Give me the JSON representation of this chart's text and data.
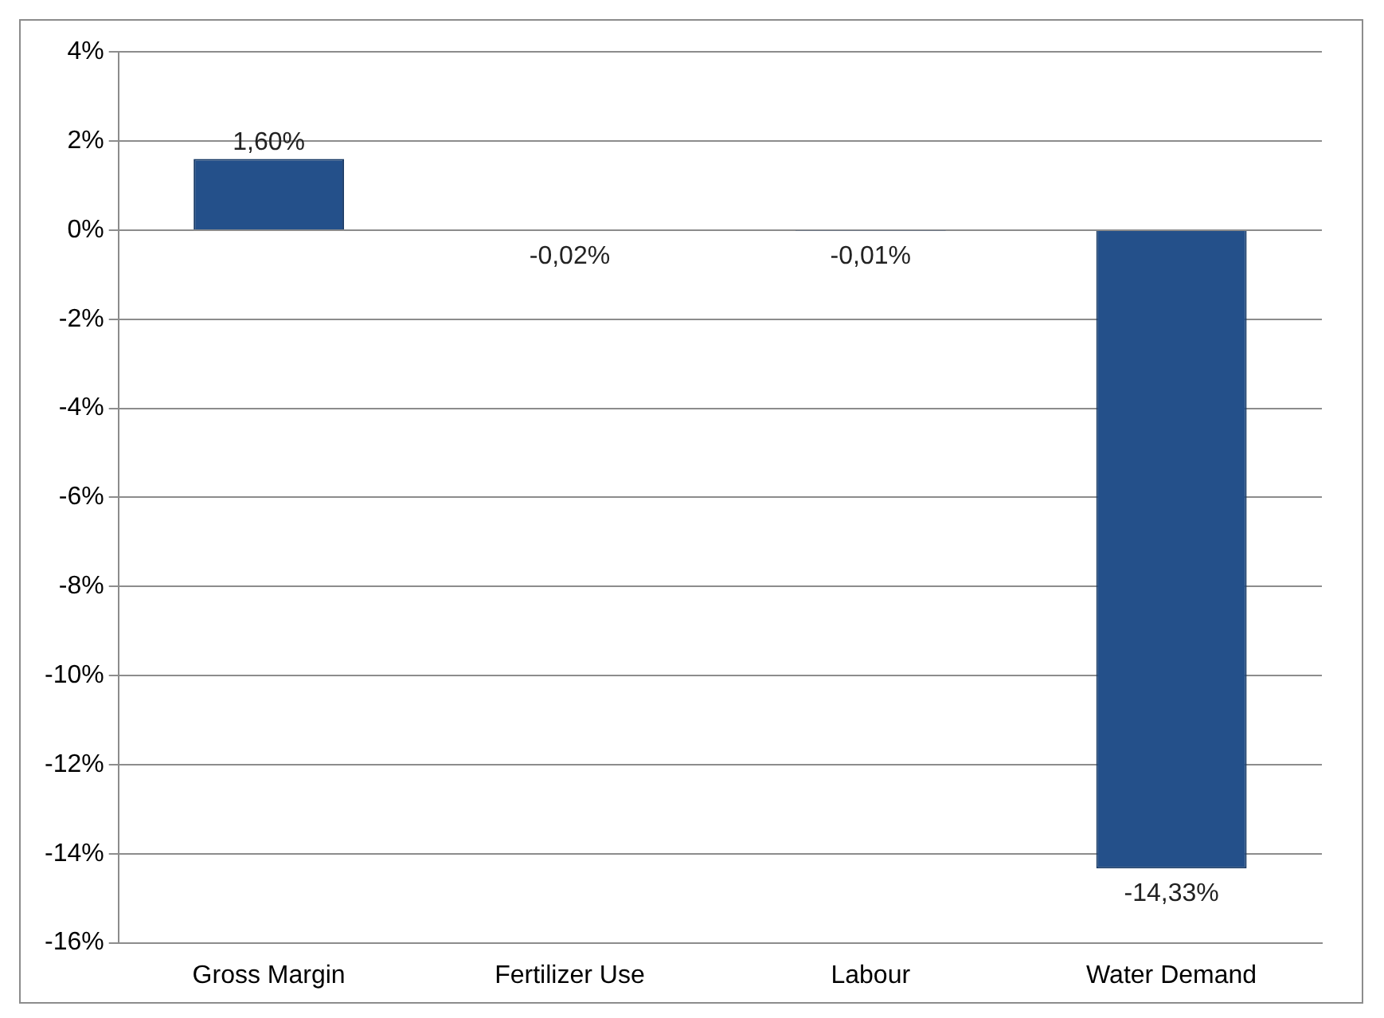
{
  "chart_data": {
    "type": "bar",
    "categories": [
      "Gross Margin",
      "Fertilizer Use",
      "Labour",
      "Water Demand"
    ],
    "values": [
      1.6,
      -0.02,
      -0.01,
      -14.33
    ],
    "value_labels": [
      "1,60%",
      "-0,02%",
      "-0,01%",
      "-14,33%"
    ],
    "color": "#24508a",
    "ylim": [
      -16,
      4
    ],
    "yticks": [
      {
        "value": -16,
        "label": "-16%"
      },
      {
        "value": -14,
        "label": "-14%"
      },
      {
        "value": -12,
        "label": "-12%"
      },
      {
        "value": -10,
        "label": "-10%"
      },
      {
        "value": -8,
        "label": "-8%"
      },
      {
        "value": -6,
        "label": "-6%"
      },
      {
        "value": -4,
        "label": "-4%"
      },
      {
        "value": -2,
        "label": "-2%"
      },
      {
        "value": 0,
        "label": "0%"
      },
      {
        "value": 2,
        "label": "2%"
      },
      {
        "value": 4,
        "label": "4%"
      }
    ],
    "grid": "y"
  }
}
